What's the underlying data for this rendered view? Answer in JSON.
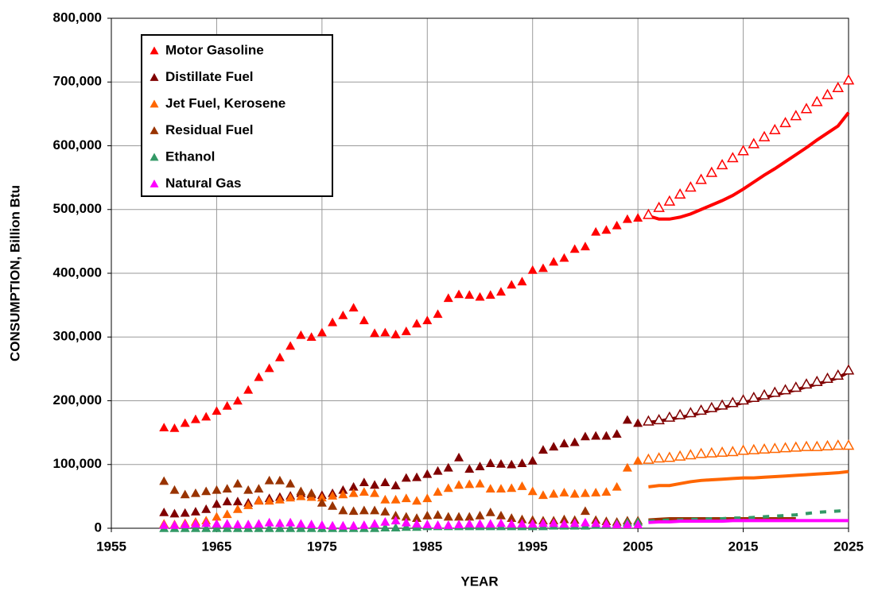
{
  "chart_data": {
    "type": "scatter",
    "xlabel": "YEAR",
    "ylabel": "CONSUMPTION, Billion Btu",
    "x": [
      1960,
      1961,
      1962,
      1963,
      1964,
      1965,
      1966,
      1967,
      1968,
      1969,
      1970,
      1971,
      1972,
      1973,
      1974,
      1975,
      1976,
      1977,
      1978,
      1979,
      1980,
      1981,
      1982,
      1983,
      1984,
      1985,
      1986,
      1987,
      1988,
      1989,
      1990,
      1991,
      1992,
      1993,
      1994,
      1995,
      1996,
      1997,
      1998,
      1999,
      2000,
      2001,
      2002,
      2003,
      2004,
      2005
    ],
    "projection_x": [
      2006,
      2007,
      2008,
      2009,
      2010,
      2011,
      2012,
      2013,
      2014,
      2015,
      2016,
      2017,
      2018,
      2019,
      2020,
      2021,
      2022,
      2023,
      2024,
      2025
    ],
    "xlim": [
      1955,
      2025
    ],
    "xticks": [
      1955,
      1965,
      1975,
      1985,
      1995,
      2005,
      2015,
      2025
    ],
    "ylim": [
      0,
      800000
    ],
    "yticks": [
      {
        "value": 0,
        "label": "0"
      },
      {
        "value": 100000,
        "label": "100,000"
      },
      {
        "value": 200000,
        "label": "200,000"
      },
      {
        "value": 300000,
        "label": "300,000"
      },
      {
        "value": 400000,
        "label": "400,000"
      },
      {
        "value": 500000,
        "label": "500,000"
      },
      {
        "value": 600000,
        "label": "600,000"
      },
      {
        "value": 700000,
        "label": "700,000"
      },
      {
        "value": 800000,
        "label": "800,000"
      }
    ],
    "grid": true,
    "legend": "upper left",
    "series": [
      {
        "name": "Motor Gasoline",
        "color": "#ff0000",
        "values": [
          158000,
          157000,
          165000,
          171000,
          175000,
          184000,
          192000,
          200000,
          217000,
          237000,
          251000,
          268000,
          286000,
          303000,
          300000,
          307000,
          323000,
          334000,
          346000,
          326000,
          306000,
          307000,
          304000,
          309000,
          321000,
          326000,
          336000,
          361000,
          367000,
          366000,
          363000,
          366000,
          371000,
          382000,
          387000,
          405000,
          408000,
          418000,
          424000,
          438000,
          442000,
          465000,
          468000,
          475000,
          485000,
          487000
        ],
        "projection_markers": [
          492000,
          503000,
          513000,
          524000,
          535000,
          547000,
          558000,
          570000,
          581000,
          592000,
          603000,
          614000,
          625000,
          636000,
          647000,
          658000,
          669000,
          680000,
          691000,
          703000
        ],
        "projection_line": [
          490000,
          485000,
          485000,
          488000,
          493000,
          500000,
          507000,
          514000,
          522000,
          532000,
          543000,
          554000,
          564000,
          575000,
          586000,
          597000,
          609000,
          620000,
          631000,
          652000
        ]
      },
      {
        "name": "Distillate Fuel",
        "color": "#800000",
        "values": [
          25000,
          23000,
          24000,
          26000,
          30000,
          38000,
          42000,
          42000,
          40000,
          44000,
          47000,
          49000,
          51000,
          55000,
          53000,
          52000,
          55000,
          60000,
          65000,
          72000,
          68000,
          72000,
          67000,
          79000,
          80000,
          85000,
          90000,
          95000,
          111000,
          93000,
          97000,
          102000,
          101000,
          100000,
          102000,
          106000,
          123000,
          128000,
          133000,
          135000,
          144000,
          145000,
          145000,
          148000,
          170000,
          165000
        ],
        "projection_markers": [
          168000,
          170000,
          174000,
          178000,
          181000,
          185000,
          189000,
          193000,
          197000,
          201000,
          205000,
          209000,
          213000,
          217000,
          221000,
          226000,
          230000,
          235000,
          240000,
          248000
        ],
        "projection_line": [
          166000,
          168000,
          171000,
          174000,
          177000,
          181000,
          185000,
          189000,
          193000,
          197000,
          201000,
          205000,
          209000,
          213000,
          217000,
          222000,
          226000,
          231000,
          236000,
          245000
        ]
      },
      {
        "name": "Jet Fuel, Kerosene",
        "color": "#ff6600",
        "values": [
          7000,
          6000,
          8000,
          10000,
          12000,
          18000,
          22000,
          30000,
          36000,
          43000,
          43000,
          45000,
          48000,
          50000,
          49000,
          48000,
          51000,
          53000,
          55000,
          57000,
          55000,
          45000,
          45000,
          47000,
          43000,
          47000,
          57000,
          63000,
          68000,
          69000,
          70000,
          62000,
          62000,
          63000,
          66000,
          58000,
          52000,
          54000,
          56000,
          54000,
          55000,
          56000,
          57000,
          65000,
          95000,
          106000
        ],
        "projection_markers": [
          108000,
          110000,
          111000,
          113000,
          115000,
          117000,
          118000,
          119000,
          120000,
          122000,
          123000,
          124000,
          125000,
          126000,
          127000,
          128000,
          128000,
          129000,
          130000,
          130000
        ],
        "projection_line": [
          65000,
          67000,
          67000,
          70000,
          73000,
          75000,
          76000,
          77000,
          78000,
          79000,
          79000,
          80000,
          81000,
          82000,
          83000,
          84000,
          85000,
          86000,
          87000,
          89000
        ]
      },
      {
        "name": "Residual Fuel",
        "color": "#993300",
        "values": [
          74000,
          60000,
          53000,
          55000,
          58000,
          60000,
          62000,
          70000,
          60000,
          62000,
          75000,
          75000,
          70000,
          58000,
          55000,
          40000,
          35000,
          28000,
          27000,
          28000,
          28000,
          26000,
          20000,
          18000,
          16000,
          20000,
          21000,
          18000,
          18000,
          18000,
          20000,
          25000,
          20000,
          16000,
          14000,
          13000,
          12000,
          12000,
          14000,
          13000,
          27000,
          13000,
          11000,
          10000,
          12000,
          12000
        ],
        "projection_line": [
          13000,
          14000,
          15000,
          15000,
          15000,
          15000,
          15000,
          15000,
          15000,
          15000,
          15000,
          15000,
          15000,
          15000,
          15000,
          null,
          null,
          null,
          null,
          null
        ]
      },
      {
        "name": "Ethanol",
        "color": "#339966",
        "line_style": "dashed",
        "values": [
          0,
          0,
          0,
          0,
          0,
          0,
          0,
          0,
          0,
          0,
          0,
          0,
          0,
          0,
          0,
          0,
          0,
          0,
          0,
          0,
          0,
          1000,
          1000,
          2000,
          2000,
          3000,
          3000,
          3000,
          3000,
          3000,
          3000,
          3000,
          3000,
          3000,
          3000,
          3000,
          3000,
          4000,
          4000,
          4000,
          4000,
          5000,
          6000,
          7000,
          9000,
          10000
        ],
        "projection_line": [
          11000,
          12000,
          13000,
          13000,
          14000,
          14000,
          15000,
          15000,
          16000,
          16000,
          17000,
          18000,
          19000,
          20000,
          21000,
          23000,
          25000,
          26000,
          27000,
          28000
        ]
      },
      {
        "name": "Natural Gas",
        "color": "#ff00ff",
        "values": [
          5000,
          5000,
          6000,
          7000,
          8000,
          7000,
          7000,
          6000,
          6000,
          7000,
          9000,
          8000,
          9000,
          7000,
          6000,
          5000,
          4000,
          4000,
          4000,
          5000,
          7000,
          10000,
          12000,
          9000,
          7000,
          6000,
          5000,
          5000,
          6000,
          7000,
          7000,
          7000,
          8000,
          7000,
          7000,
          7000,
          8000,
          8000,
          7000,
          8000,
          9000,
          8000,
          7000,
          6000,
          6000,
          6000
        ],
        "projection_line": [
          9000,
          10000,
          10000,
          11000,
          11000,
          11000,
          11000,
          11000,
          12000,
          12000,
          12000,
          12000,
          12000,
          12000,
          12000,
          12000,
          12000,
          12000,
          12000,
          12000
        ]
      }
    ]
  }
}
